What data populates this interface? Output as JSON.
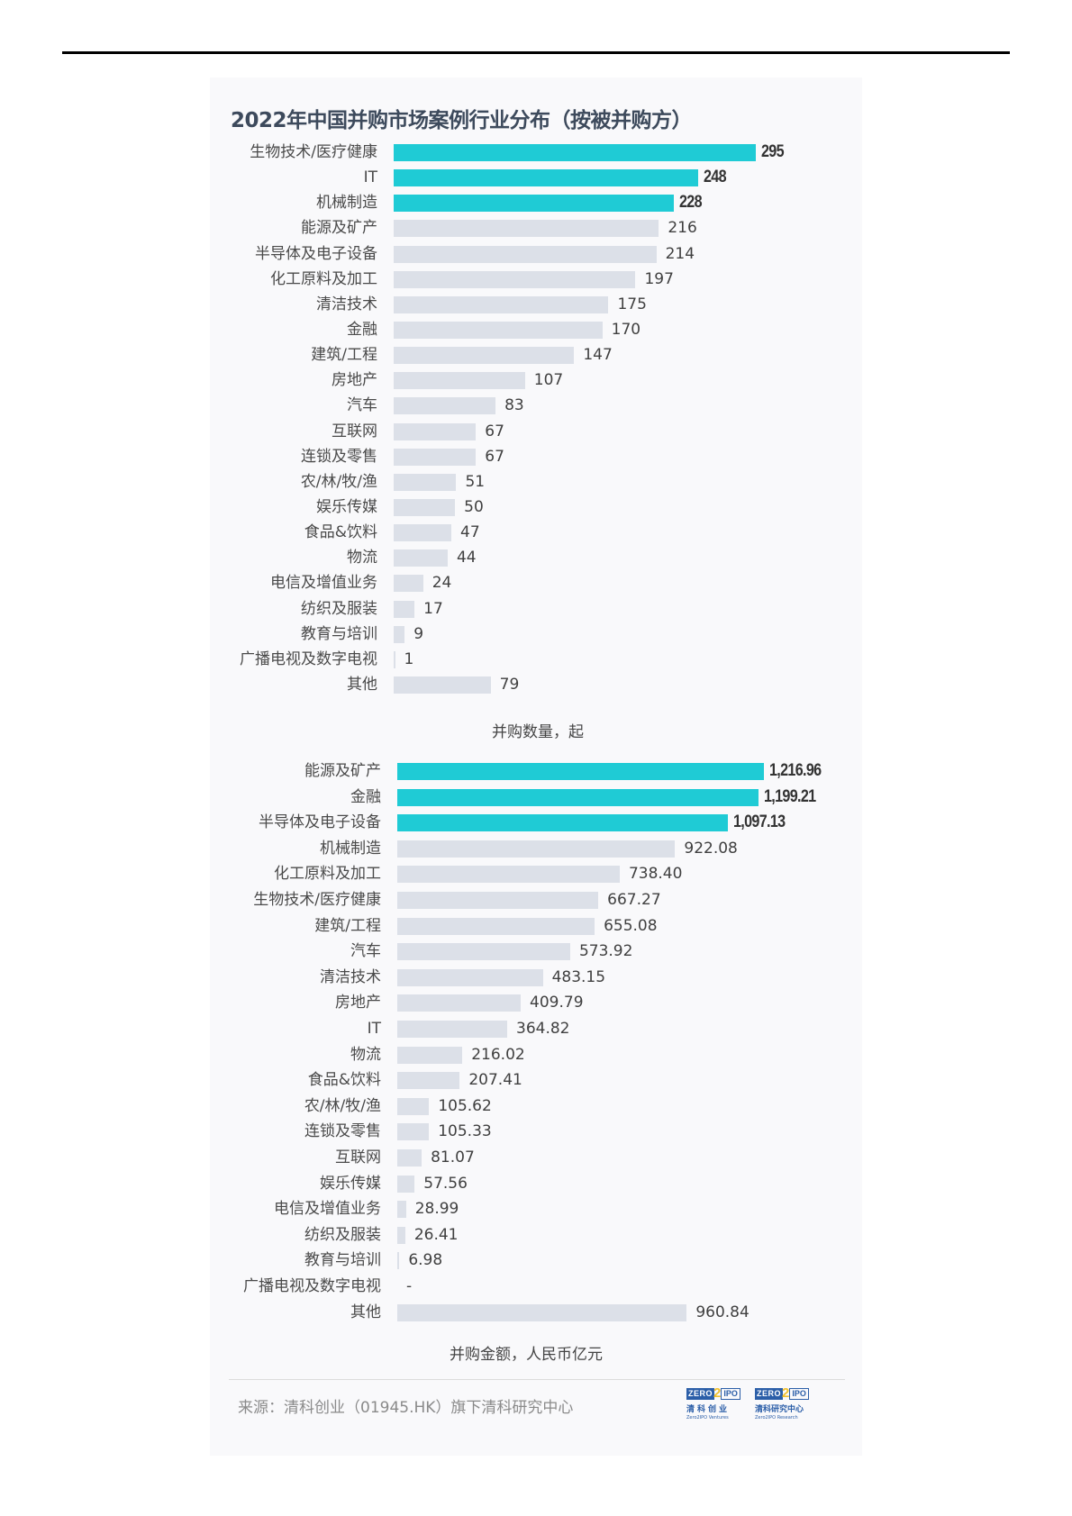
{
  "title": "2022年中国并购市场案例行业分布（按被并购方）",
  "colors": {
    "highlight": "#1fcbd5",
    "bar": "#dce0e8",
    "title": "#3d4a5c"
  },
  "footer": {
    "source": "来源：清科创业（01945.HK）旗下清科研究中心",
    "logos": [
      {
        "zero": "ZERO",
        "two": "2",
        "ipo": "IPO",
        "cn": "清科创业",
        "en": "Zero2IPO Ventures"
      },
      {
        "zero": "ZERO",
        "two": "2",
        "ipo": "IPO",
        "cn": "清科研究中心",
        "en": "Zero2IPO Research"
      }
    ]
  },
  "chart_data": [
    {
      "type": "bar",
      "orientation": "horizontal",
      "title": "2022年中国并购市场案例行业分布（按被并购方）",
      "xlabel": "并购数量，起",
      "ylabel": "",
      "categories": [
        "生物技术/医疗健康",
        "IT",
        "机械制造",
        "能源及矿产",
        "半导体及电子设备",
        "化工原料及加工",
        "清洁技术",
        "金融",
        "建筑/工程",
        "房地产",
        "汽车",
        "互联网",
        "连锁及零售",
        "农/林/牧/渔",
        "娱乐传媒",
        "食品&饮料",
        "物流",
        "电信及增值业务",
        "纺织及服装",
        "教育与培训",
        "广播电视及数字电视",
        "其他"
      ],
      "values": [
        295,
        248,
        228,
        216,
        214,
        197,
        175,
        170,
        147,
        107,
        83,
        67,
        67,
        51,
        50,
        47,
        44,
        24,
        17,
        9,
        1,
        79
      ],
      "labels": [
        "295",
        "248",
        "228",
        "216",
        "214",
        "197",
        "175",
        "170",
        "147",
        "107",
        "83",
        "67",
        "67",
        "51",
        "50",
        "47",
        "44",
        "24",
        "17",
        "9",
        "1",
        "79"
      ],
      "highlighted": [
        0,
        1,
        2
      ],
      "grid": false,
      "legend": null
    },
    {
      "type": "bar",
      "orientation": "horizontal",
      "title": "",
      "xlabel": "并购金额，人民币亿元",
      "ylabel": "",
      "categories": [
        "能源及矿产",
        "金融",
        "半导体及电子设备",
        "机械制造",
        "化工原料及加工",
        "生物技术/医疗健康",
        "建筑/工程",
        "汽车",
        "清洁技术",
        "房地产",
        "IT",
        "物流",
        "食品&饮料",
        "农/林/牧/渔",
        "连锁及零售",
        "互联网",
        "娱乐传媒",
        "电信及增值业务",
        "纺织及服装",
        "教育与培训",
        "广播电视及数字电视",
        "其他"
      ],
      "values": [
        1216.96,
        1199.21,
        1097.13,
        922.08,
        738.4,
        667.27,
        655.08,
        573.92,
        483.15,
        409.79,
        364.82,
        216.02,
        207.41,
        105.62,
        105.33,
        81.07,
        57.56,
        28.99,
        26.41,
        6.98,
        0,
        960.84
      ],
      "labels": [
        "1,216.96",
        "1,199.21",
        "1,097.13",
        "922.08",
        "738.40",
        "667.27",
        "655.08",
        "573.92",
        "483.15",
        "409.79",
        "364.82",
        "216.02",
        "207.41",
        "105.62",
        "105.33",
        "81.07",
        "57.56",
        "28.99",
        "26.41",
        "6.98",
        "-",
        "960.84"
      ],
      "highlighted": [
        0,
        1,
        2
      ],
      "grid": false,
      "legend": null
    }
  ]
}
